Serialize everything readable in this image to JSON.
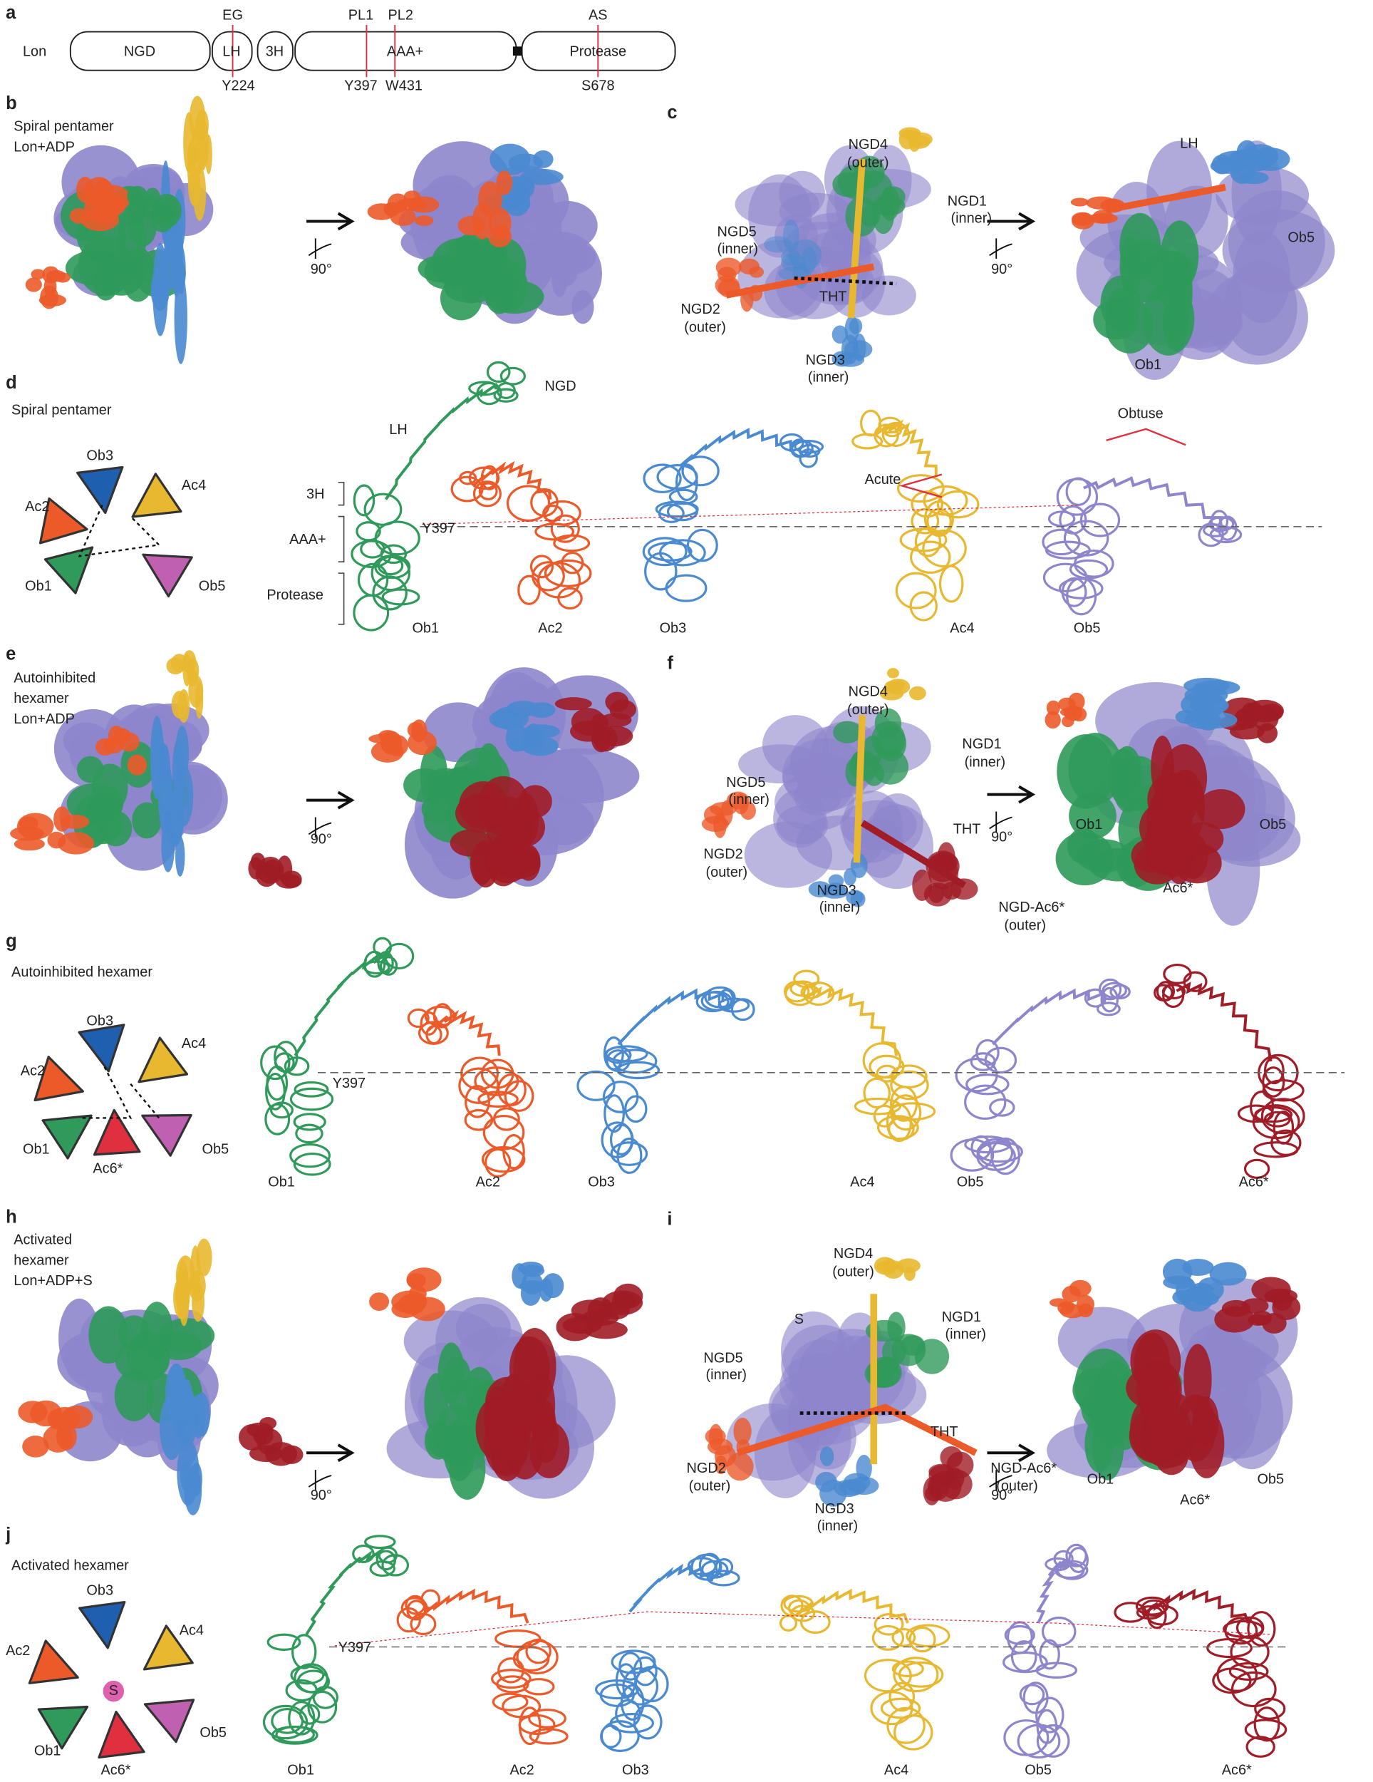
{
  "a": {
    "label": "a",
    "protein": "Lon",
    "domains": [
      "NGD",
      "LH",
      "3H",
      "AAA+",
      "Protease"
    ],
    "top_sites": [
      "EG",
      "PL1",
      "PL2",
      "AS"
    ],
    "bottom_sites": [
      "Y224",
      "Y397",
      "W431",
      "S678"
    ]
  },
  "b": {
    "label": "b",
    "title": [
      "Spiral pentamer",
      "Lon+ADP"
    ],
    "rotation": "90°"
  },
  "c": {
    "label": "c",
    "labels": [
      "NGD4",
      "(outer)",
      "NGD1",
      "(inner)",
      "NGD5",
      "(inner)",
      "NGD2",
      "(outer)",
      "NGD3",
      "(inner)",
      "THT",
      "LH",
      "Ob5",
      "Ob1"
    ],
    "rotation": "90°"
  },
  "d": {
    "label": "d",
    "title": "Spiral pentamer",
    "cartoon": [
      "Ob3",
      "Ac2",
      "Ac4",
      "Ob1",
      "Ob5"
    ],
    "domains": [
      "NGD",
      "LH",
      "3H",
      "AAA+",
      "Protease"
    ],
    "residue": "Y397",
    "angles": [
      "Acute",
      "Obtuse"
    ],
    "subunits": [
      "Ob1",
      "Ac2",
      "Ob3",
      "Ac4",
      "Ob5"
    ]
  },
  "e": {
    "label": "e",
    "title": [
      "Autoinhibited",
      "hexamer",
      "Lon+ADP"
    ],
    "rotation": "90°"
  },
  "f": {
    "label": "f",
    "labels": [
      "NGD4",
      "(outer)",
      "NGD1",
      "(inner)",
      "NGD5",
      "(inner)",
      "NGD2",
      "(outer)",
      "NGD3",
      "(inner)",
      "THT",
      "NGD-Ac6*",
      "(outer)",
      "Ob1",
      "Ob5",
      "Ac6*"
    ],
    "rotation": "90°"
  },
  "g": {
    "label": "g",
    "title": "Autoinhibited hexamer",
    "cartoon": [
      "Ob3",
      "Ac2",
      "Ac4",
      "Ob1",
      "Ac6*",
      "Ob5"
    ],
    "residue": "Y397",
    "subunits": [
      "Ob1",
      "Ac2",
      "Ob3",
      "Ac4",
      "Ob5",
      "Ac6*"
    ]
  },
  "h": {
    "label": "h",
    "title": [
      "Activated",
      "hexamer",
      "Lon+ADP+S"
    ],
    "rotation": "90°"
  },
  "i": {
    "label": "i",
    "labels": [
      "NGD4",
      "(outer)",
      "S",
      "NGD1",
      "(inner)",
      "NGD5",
      "(inner)",
      "THT",
      "NGD2",
      "(outer)",
      "NGD3",
      "(inner)",
      "NGD-Ac6*",
      "(outer)",
      "Ob1",
      "Ob5",
      "Ac6*"
    ],
    "rotation": "90°"
  },
  "j": {
    "label": "j",
    "title": "Activated hexamer",
    "cartoon": [
      "Ob3",
      "Ac2",
      "Ac4",
      "S",
      "Ob1",
      "Ac6*",
      "Ob5"
    ],
    "residue": "Y397",
    "subunits": [
      "Ob1",
      "Ac2",
      "Ob3",
      "Ac4",
      "Ob5",
      "Ac6*"
    ]
  }
}
